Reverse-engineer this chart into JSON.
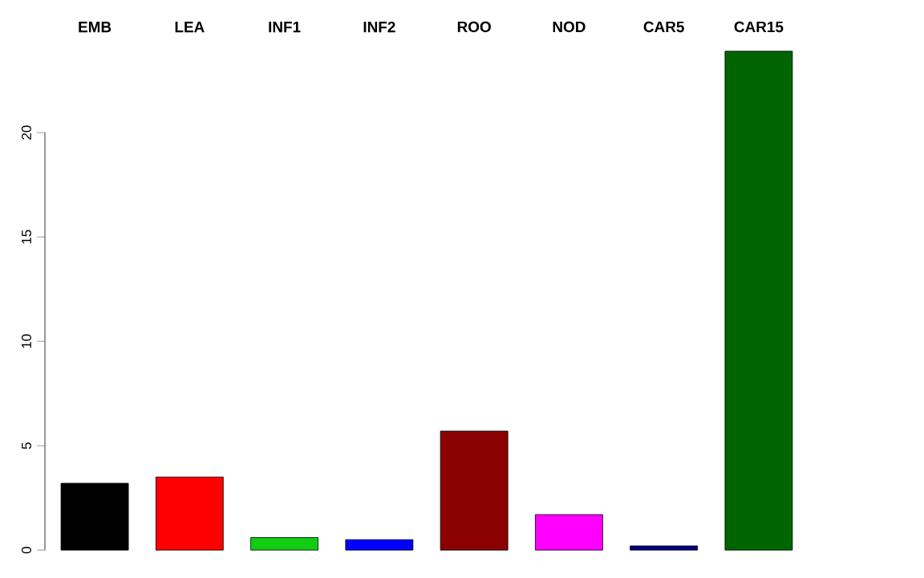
{
  "chart_data": {
    "type": "bar",
    "categories": [
      "EMB",
      "LEA",
      "INF1",
      "INF2",
      "ROO",
      "NOD",
      "CAR5",
      "CAR15"
    ],
    "values": [
      3.2,
      3.5,
      0.6,
      0.5,
      5.7,
      1.7,
      0.2,
      23.9
    ],
    "colors": [
      "#000000",
      "#ff0000",
      "#11cc11",
      "#0000ff",
      "#8b0000",
      "#ff00ff",
      "#000080",
      "#006400"
    ],
    "ylim": [
      0,
      24
    ],
    "yticks": [
      0,
      5,
      10,
      15,
      20
    ]
  }
}
